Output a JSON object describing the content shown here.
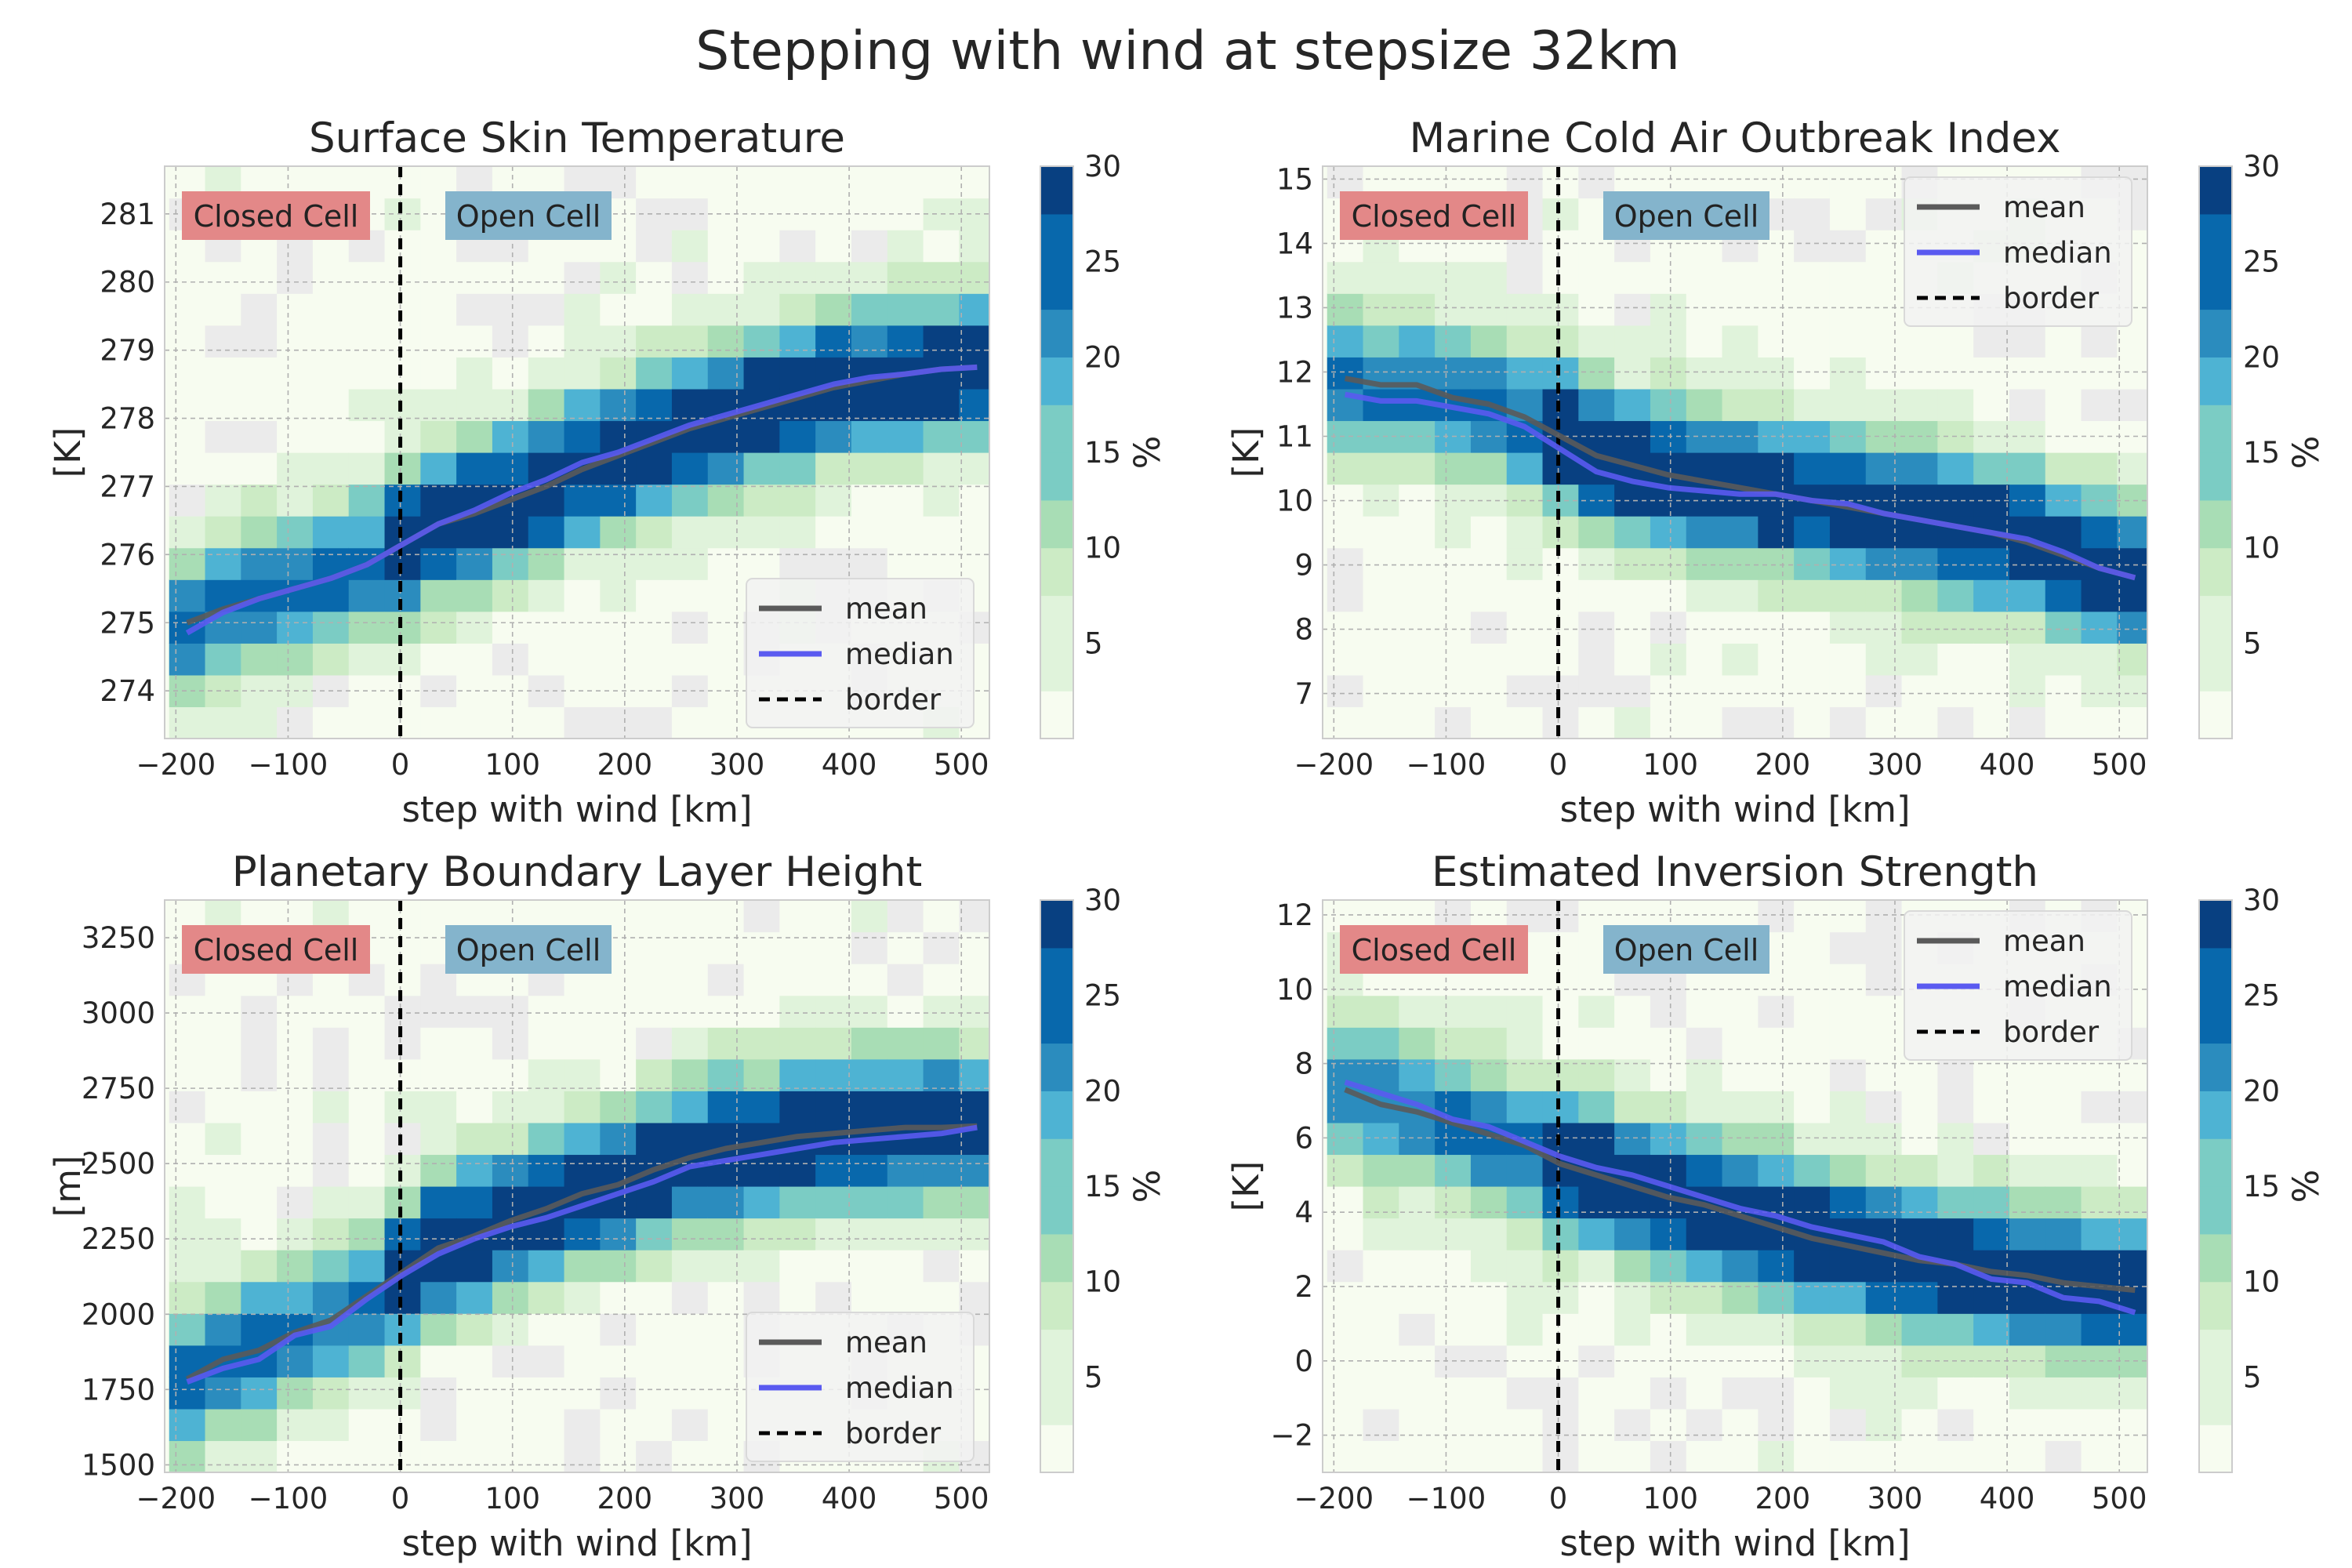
{
  "figure": {
    "title": "Stepping with wind at stepsize 32km"
  },
  "colors": {
    "mean": "#5a5a5a",
    "median": "#5a5af0",
    "border": "#000000",
    "closed_box": "#e38888",
    "open_box": "#84b4cc",
    "colormap": [
      "#f7fcf0",
      "#e0f3db",
      "#ccebc5",
      "#a8ddb5",
      "#7bccc4",
      "#4eb3d3",
      "#2b8cbe",
      "#0868ac",
      "#084081"
    ],
    "empty_cell": "#ebebeb"
  },
  "legend": {
    "mean": "mean",
    "median": "median",
    "border": "border"
  },
  "regions": {
    "closed": "Closed Cell",
    "open": "Open Cell"
  },
  "chart_data": [
    {
      "type": "heatmap",
      "title": "Surface Skin Temperature",
      "xlabel": "step with wind [km]",
      "ylabel": "[K]",
      "colorbar_label": "%",
      "colorbar_range": [
        0,
        30
      ],
      "colorbar_ticks": [
        "5",
        "10",
        "15",
        "20",
        "25",
        "30"
      ],
      "xlim": [
        -210,
        525
      ],
      "ylim": [
        273.3,
        281.7
      ],
      "xticks": [
        "−200",
        "−100",
        "0",
        "100",
        "200",
        "300",
        "400",
        "500"
      ],
      "yticks": [
        "274",
        "275",
        "276",
        "277",
        "278",
        "279",
        "280",
        "281"
      ],
      "legend_position": "lower-right",
      "x": [
        -190,
        -158,
        -126,
        -94,
        -62,
        -30,
        2,
        34,
        66,
        98,
        130,
        162,
        194,
        226,
        258,
        290,
        322,
        354,
        386,
        418,
        450,
        482,
        514
      ],
      "series": [
        {
          "name": "mean",
          "values": [
            275.0,
            275.2,
            275.35,
            275.5,
            275.65,
            275.85,
            276.15,
            276.45,
            276.6,
            276.8,
            277.0,
            277.25,
            277.45,
            277.65,
            277.85,
            278.0,
            278.15,
            278.3,
            278.45,
            278.55,
            278.65,
            278.72,
            278.75
          ]
        },
        {
          "name": "median",
          "values": [
            274.85,
            275.15,
            275.35,
            275.5,
            275.65,
            275.85,
            276.15,
            276.45,
            276.65,
            276.9,
            277.1,
            277.35,
            277.5,
            277.7,
            277.9,
            278.05,
            278.2,
            278.35,
            278.5,
            278.6,
            278.65,
            278.72,
            278.75
          ]
        }
      ],
      "border_x": 0
    },
    {
      "type": "heatmap",
      "title": "Marine Cold Air Outbreak Index",
      "xlabel": "step with wind [km]",
      "ylabel": "[K]",
      "colorbar_label": "%",
      "colorbar_range": [
        0,
        30
      ],
      "colorbar_ticks": [
        "5",
        "10",
        "15",
        "20",
        "25",
        "30"
      ],
      "xlim": [
        -210,
        525
      ],
      "ylim": [
        6.3,
        15.2
      ],
      "xticks": [
        "−200",
        "−100",
        "0",
        "100",
        "200",
        "300",
        "400",
        "500"
      ],
      "yticks": [
        "7",
        "8",
        "9",
        "10",
        "11",
        "12",
        "13",
        "14",
        "15"
      ],
      "legend_position": "upper-right",
      "x": [
        -190,
        -158,
        -126,
        -94,
        -62,
        -30,
        2,
        34,
        66,
        98,
        130,
        162,
        194,
        226,
        258,
        290,
        322,
        354,
        386,
        418,
        450,
        482,
        514
      ],
      "series": [
        {
          "name": "mean",
          "values": [
            11.9,
            11.8,
            11.8,
            11.6,
            11.5,
            11.3,
            11.0,
            10.7,
            10.55,
            10.4,
            10.3,
            10.2,
            10.1,
            10.0,
            9.9,
            9.8,
            9.7,
            9.6,
            9.5,
            9.35,
            9.15,
            8.95,
            8.8
          ]
        },
        {
          "name": "median",
          "values": [
            11.65,
            11.55,
            11.55,
            11.45,
            11.35,
            11.15,
            10.8,
            10.45,
            10.3,
            10.2,
            10.15,
            10.1,
            10.1,
            10.0,
            9.95,
            9.8,
            9.7,
            9.6,
            9.5,
            9.4,
            9.2,
            8.95,
            8.8
          ]
        }
      ],
      "border_x": 0
    },
    {
      "type": "heatmap",
      "title": "Planetary Boundary Layer Height",
      "xlabel": "step with wind [km]",
      "ylabel": "[m]",
      "colorbar_label": "%",
      "colorbar_range": [
        0,
        30
      ],
      "colorbar_ticks": [
        "5",
        "10",
        "15",
        "20",
        "25",
        "30"
      ],
      "xlim": [
        -210,
        525
      ],
      "ylim": [
        1475,
        3375
      ],
      "xticks": [
        "−200",
        "−100",
        "0",
        "100",
        "200",
        "300",
        "400",
        "500"
      ],
      "yticks": [
        "1500",
        "1750",
        "2000",
        "2250",
        "2500",
        "2750",
        "3000",
        "3250"
      ],
      "legend_position": "lower-right",
      "x": [
        -190,
        -158,
        -126,
        -94,
        -62,
        -30,
        2,
        34,
        66,
        98,
        130,
        162,
        194,
        226,
        258,
        290,
        322,
        354,
        386,
        418,
        450,
        482,
        514
      ],
      "series": [
        {
          "name": "mean",
          "values": [
            1785,
            1850,
            1880,
            1940,
            1980,
            2060,
            2140,
            2220,
            2260,
            2310,
            2350,
            2400,
            2430,
            2480,
            2520,
            2550,
            2570,
            2590,
            2600,
            2610,
            2620,
            2620,
            2625
          ]
        },
        {
          "name": "median",
          "values": [
            1775,
            1820,
            1850,
            1930,
            1960,
            2050,
            2130,
            2200,
            2250,
            2290,
            2320,
            2360,
            2400,
            2440,
            2490,
            2510,
            2530,
            2550,
            2570,
            2580,
            2590,
            2600,
            2620
          ]
        }
      ],
      "border_x": 0
    },
    {
      "type": "heatmap",
      "title": "Estimated Inversion Strength",
      "xlabel": "step with wind [km]",
      "ylabel": "[K]",
      "colorbar_label": "%",
      "colorbar_range": [
        0,
        30
      ],
      "colorbar_ticks": [
        "5",
        "10",
        "15",
        "20",
        "25",
        "30"
      ],
      "xlim": [
        -210,
        525
      ],
      "ylim": [
        -3,
        12.4
      ],
      "xticks": [
        "−200",
        "−100",
        "0",
        "100",
        "200",
        "300",
        "400",
        "500"
      ],
      "yticks": [
        "−2",
        "0",
        "2",
        "4",
        "6",
        "8",
        "10",
        "12"
      ],
      "legend_position": "upper-right",
      "x": [
        -190,
        -158,
        -126,
        -94,
        -62,
        -30,
        2,
        34,
        66,
        98,
        130,
        162,
        194,
        226,
        258,
        290,
        322,
        354,
        386,
        418,
        450,
        482,
        514
      ],
      "series": [
        {
          "name": "mean",
          "values": [
            7.3,
            6.9,
            6.7,
            6.4,
            6.1,
            5.8,
            5.3,
            5.0,
            4.7,
            4.4,
            4.2,
            3.9,
            3.6,
            3.3,
            3.1,
            2.9,
            2.7,
            2.6,
            2.4,
            2.3,
            2.1,
            2.0,
            1.9
          ]
        },
        {
          "name": "median",
          "values": [
            7.5,
            7.2,
            6.9,
            6.5,
            6.3,
            5.9,
            5.5,
            5.2,
            5.0,
            4.7,
            4.4,
            4.1,
            3.9,
            3.6,
            3.4,
            3.2,
            2.8,
            2.6,
            2.2,
            2.1,
            1.7,
            1.6,
            1.3
          ]
        }
      ],
      "border_x": 0
    }
  ]
}
